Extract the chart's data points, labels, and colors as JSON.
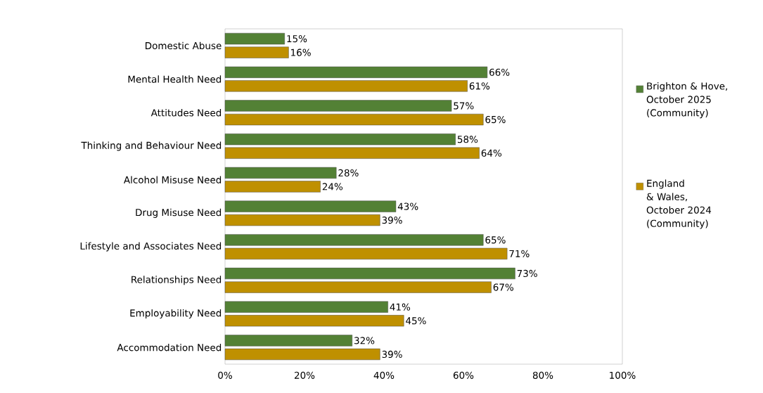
{
  "chart_data": {
    "type": "bar",
    "orientation": "horizontal",
    "categories": [
      "Domestic Abuse",
      "Mental Health Need",
      "Attitudes Need",
      "Thinking and Behaviour Need",
      "Alcohol Misuse Need",
      "Drug Misuse Need",
      "Lifestyle and Associates Need",
      "Relationships Need",
      "Employability Need",
      "Accommodation Need"
    ],
    "series": [
      {
        "name": "Brighton & Hove, October 2025 (Community)",
        "color": "#538135",
        "values": [
          15,
          66,
          57,
          58,
          28,
          43,
          65,
          73,
          41,
          32
        ],
        "value_labels": [
          "15%",
          "66%",
          "57%",
          "58%",
          "28%",
          "43%",
          "65%",
          "73%",
          "41%",
          "32%"
        ]
      },
      {
        "name": "England & Wales, October 2024 (Community)",
        "color": "#bf9000",
        "values": [
          16,
          61,
          65,
          64,
          24,
          39,
          71,
          67,
          45,
          39
        ],
        "value_labels": [
          "16%",
          "61%",
          "65%",
          "64%",
          "24%",
          "39%",
          "71%",
          "67%",
          "45%",
          "39%"
        ]
      }
    ],
    "xlim": [
      0,
      100
    ],
    "xticks": [
      {
        "value": 0,
        "label": "0%"
      },
      {
        "value": 20,
        "label": "20%"
      },
      {
        "value": 40,
        "label": "40%"
      },
      {
        "value": 60,
        "label": "60%"
      },
      {
        "value": 80,
        "label": "80%"
      },
      {
        "value": 100,
        "label": "100%"
      }
    ],
    "grid": false,
    "legend": "right"
  }
}
